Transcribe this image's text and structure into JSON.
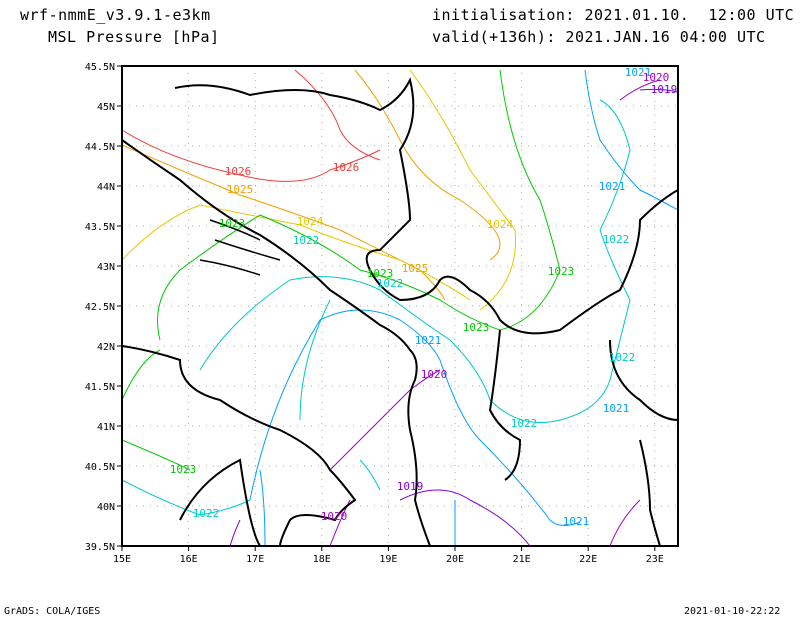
{
  "header": {
    "model": "wrf-nmmE_v3.9.1-e3km",
    "field": "MSL Pressure [hPa]",
    "init": "initialisation: 2021.01.10.  12:00 UTC",
    "valid": "valid(+136h): 2021.JAN.16 04:00 UTC"
  },
  "axes": {
    "lat_labels": [
      "45.5N",
      "45N",
      "44.5N",
      "44N",
      "43.5N",
      "43N",
      "42.5N",
      "42N",
      "41.5N",
      "41N",
      "40.5N",
      "40N",
      "39.5N"
    ],
    "lon_labels": [
      "15E",
      "16E",
      "17E",
      "18E",
      "19E",
      "20E",
      "21E",
      "22E",
      "23E"
    ]
  },
  "contour_labels": [
    "1021",
    "1020",
    "1019",
    "1026",
    "1026",
    "1025",
    "1024",
    "1023",
    "1022",
    "1024",
    "1021",
    "1022",
    "1023",
    "1025",
    "1022",
    "1023",
    "1023",
    "1021",
    "1022",
    "1020",
    "1021",
    "1022",
    "1023",
    "1019",
    "1022",
    "1020",
    "1021"
  ],
  "colors": {
    "1026": "#f03c3c",
    "1025": "#f0a000",
    "1024": "#e6c800",
    "1023": "#00c800",
    "1022": "#00c8c8",
    "1021": "#00a0ff",
    "1020": "#a000c8",
    "1019": "#8200dc"
  },
  "footer": {
    "left": "GrADS: COLA/IGES",
    "right": "2021-01-10-22:22"
  }
}
